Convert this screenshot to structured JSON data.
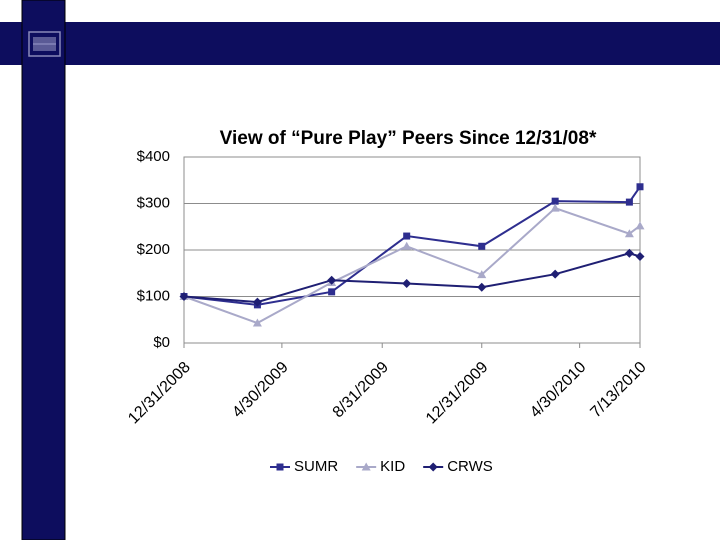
{
  "chart_data": {
    "type": "line",
    "title": "View of “Pure Play” Peers Since 12/31/08*",
    "x": [
      "12/31/2008",
      "3/31/2009",
      "6/30/2009",
      "9/30/2009",
      "12/31/2009",
      "3/31/2010",
      "6/30/2010",
      "7/13/2010"
    ],
    "xlim": [
      "12/31/2008",
      "7/13/2010"
    ],
    "xticks": [
      "12/31/2008",
      "4/30/2009",
      "8/31/2009",
      "12/31/2009",
      "4/30/2010",
      "7/13/2010"
    ],
    "ylim": [
      0,
      400
    ],
    "yticks": [
      {
        "value": 0,
        "label": "$0"
      },
      {
        "value": 100,
        "label": "$100"
      },
      {
        "value": 200,
        "label": "$200"
      },
      {
        "value": 300,
        "label": "$300"
      },
      {
        "value": 400,
        "label": "$400"
      }
    ],
    "grid": true,
    "legend": "bottom",
    "series": [
      {
        "name": "SUMR",
        "color": "#2e2e8f",
        "marker": "square",
        "values": [
          100,
          82,
          110,
          230,
          208,
          305,
          303,
          336
        ]
      },
      {
        "name": "KID",
        "color": "#a9a9c9",
        "marker": "triangle",
        "values": [
          100,
          43,
          130,
          208,
          147,
          290,
          235,
          252
        ]
      },
      {
        "name": "CRWS",
        "color": "#1f1f73",
        "marker": "diamond",
        "values": [
          100,
          88,
          135,
          128,
          120,
          148,
          193,
          186
        ]
      }
    ]
  }
}
